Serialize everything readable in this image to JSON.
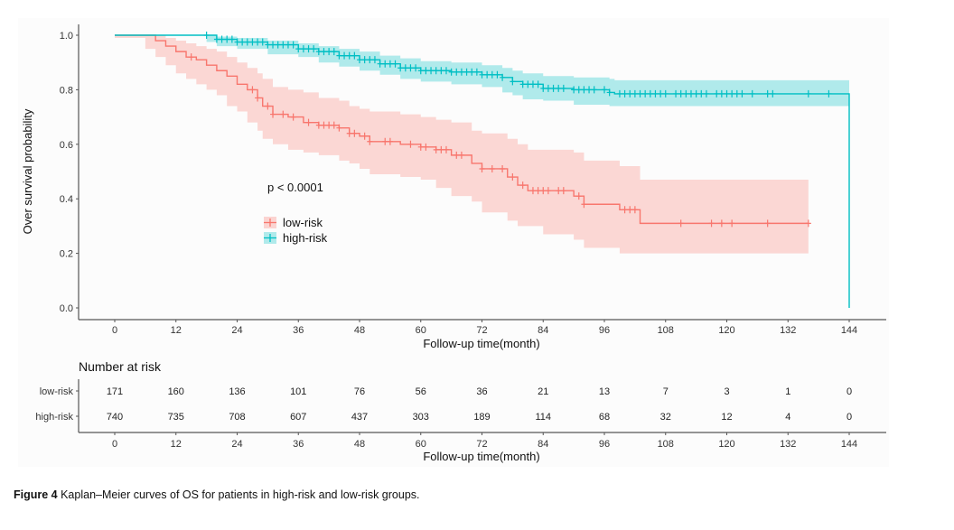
{
  "caption": {
    "label": "Figure 4",
    "text": " Kaplan–Meier curves of OS for patients in high-risk and low-risk groups."
  },
  "chart_data": {
    "type": "line",
    "subtype": "kaplan-meier",
    "title": "",
    "xlabel": "Follow-up time(month)",
    "ylabel": "Over survival probability",
    "xlim": [
      0,
      144
    ],
    "ylim": [
      0,
      1
    ],
    "x_ticks": [
      0,
      12,
      24,
      36,
      48,
      60,
      72,
      84,
      96,
      108,
      120,
      132,
      144
    ],
    "y_ticks": [
      0.0,
      0.2,
      0.4,
      0.6,
      0.8,
      1.0
    ],
    "y_tick_labels": [
      "0.0",
      "0.2",
      "0.4",
      "0.6",
      "0.8",
      "1.0"
    ],
    "grid": false,
    "annotation": "p < 0.0001",
    "legend": {
      "placement": "center-left",
      "entries": [
        "low-risk",
        "high-risk"
      ]
    },
    "series": [
      {
        "name": "low-risk",
        "color": "#F8766D",
        "band_color": "#F8766D",
        "points": [
          [
            0,
            1.0
          ],
          [
            6,
            1.0
          ],
          [
            8,
            0.98
          ],
          [
            10,
            0.96
          ],
          [
            12,
            0.94
          ],
          [
            14,
            0.92
          ],
          [
            16,
            0.91
          ],
          [
            18,
            0.89
          ],
          [
            20,
            0.87
          ],
          [
            22,
            0.85
          ],
          [
            24,
            0.82
          ],
          [
            26,
            0.8
          ],
          [
            28,
            0.77
          ],
          [
            29,
            0.74
          ],
          [
            31,
            0.71
          ],
          [
            34,
            0.7
          ],
          [
            37,
            0.68
          ],
          [
            40,
            0.67
          ],
          [
            44,
            0.66
          ],
          [
            46,
            0.64
          ],
          [
            48,
            0.63
          ],
          [
            50,
            0.61
          ],
          [
            56,
            0.6
          ],
          [
            60,
            0.59
          ],
          [
            63,
            0.58
          ],
          [
            66,
            0.56
          ],
          [
            70,
            0.53
          ],
          [
            72,
            0.51
          ],
          [
            77,
            0.48
          ],
          [
            79,
            0.45
          ],
          [
            81,
            0.43
          ],
          [
            84,
            0.43
          ],
          [
            90,
            0.41
          ],
          [
            92,
            0.38
          ],
          [
            99,
            0.36
          ],
          [
            103,
            0.31
          ],
          [
            136,
            0.31
          ]
        ],
        "lower": [
          [
            0,
            1.0
          ],
          [
            6,
            0.99
          ],
          [
            8,
            0.95
          ],
          [
            10,
            0.92
          ],
          [
            12,
            0.89
          ],
          [
            14,
            0.86
          ],
          [
            16,
            0.84
          ],
          [
            18,
            0.82
          ],
          [
            20,
            0.8
          ],
          [
            22,
            0.78
          ],
          [
            24,
            0.74
          ],
          [
            26,
            0.72
          ],
          [
            28,
            0.68
          ],
          [
            29,
            0.65
          ],
          [
            31,
            0.62
          ],
          [
            34,
            0.6
          ],
          [
            37,
            0.58
          ],
          [
            40,
            0.57
          ],
          [
            44,
            0.56
          ],
          [
            46,
            0.54
          ],
          [
            48,
            0.53
          ],
          [
            50,
            0.51
          ],
          [
            56,
            0.49
          ],
          [
            60,
            0.48
          ],
          [
            63,
            0.47
          ],
          [
            66,
            0.44
          ],
          [
            70,
            0.41
          ],
          [
            72,
            0.39
          ],
          [
            77,
            0.35
          ],
          [
            79,
            0.32
          ],
          [
            81,
            0.3
          ],
          [
            84,
            0.3
          ],
          [
            90,
            0.27
          ],
          [
            92,
            0.25
          ],
          [
            99,
            0.22
          ],
          [
            103,
            0.2
          ],
          [
            136,
            0.2
          ]
        ],
        "upper": [
          [
            0,
            1.0
          ],
          [
            6,
            1.0
          ],
          [
            8,
            1.0
          ],
          [
            10,
            0.99
          ],
          [
            12,
            0.98
          ],
          [
            14,
            0.97
          ],
          [
            16,
            0.96
          ],
          [
            18,
            0.95
          ],
          [
            20,
            0.94
          ],
          [
            22,
            0.92
          ],
          [
            24,
            0.9
          ],
          [
            26,
            0.88
          ],
          [
            28,
            0.86
          ],
          [
            29,
            0.84
          ],
          [
            31,
            0.81
          ],
          [
            34,
            0.8
          ],
          [
            37,
            0.79
          ],
          [
            40,
            0.77
          ],
          [
            44,
            0.76
          ],
          [
            46,
            0.74
          ],
          [
            48,
            0.73
          ],
          [
            50,
            0.72
          ],
          [
            56,
            0.71
          ],
          [
            60,
            0.7
          ],
          [
            63,
            0.69
          ],
          [
            66,
            0.68
          ],
          [
            70,
            0.65
          ],
          [
            72,
            0.64
          ],
          [
            77,
            0.62
          ],
          [
            79,
            0.6
          ],
          [
            81,
            0.58
          ],
          [
            84,
            0.58
          ],
          [
            90,
            0.57
          ],
          [
            92,
            0.54
          ],
          [
            99,
            0.52
          ],
          [
            103,
            0.47
          ],
          [
            136,
            0.47
          ]
        ],
        "censor_times": [
          15,
          27,
          28,
          30,
          31,
          33,
          35,
          38,
          40,
          41,
          42,
          43,
          44,
          46,
          47,
          49,
          50,
          53,
          54,
          58,
          60,
          61,
          63,
          64,
          65,
          67,
          68,
          72,
          74,
          76,
          78,
          80,
          82,
          83,
          84,
          85,
          87,
          88,
          91,
          92,
          100,
          101,
          102,
          111,
          117,
          119,
          121,
          128,
          136
        ]
      },
      {
        "name": "high-risk",
        "color": "#00BFC4",
        "band_color": "#00BFC4",
        "points": [
          [
            0,
            1.0
          ],
          [
            18,
            1.0
          ],
          [
            20,
            0.985
          ],
          [
            24,
            0.975
          ],
          [
            30,
            0.965
          ],
          [
            36,
            0.95
          ],
          [
            40,
            0.94
          ],
          [
            44,
            0.925
          ],
          [
            48,
            0.91
          ],
          [
            52,
            0.895
          ],
          [
            56,
            0.88
          ],
          [
            60,
            0.87
          ],
          [
            66,
            0.865
          ],
          [
            72,
            0.855
          ],
          [
            76,
            0.845
          ],
          [
            78,
            0.83
          ],
          [
            80,
            0.82
          ],
          [
            84,
            0.805
          ],
          [
            90,
            0.8
          ],
          [
            97,
            0.79
          ],
          [
            98,
            0.785
          ],
          [
            144,
            0.785
          ],
          [
            144,
            0.0
          ]
        ],
        "lower": [
          [
            0,
            1.0
          ],
          [
            18,
            1.0
          ],
          [
            20,
            0.975
          ],
          [
            24,
            0.96
          ],
          [
            30,
            0.95
          ],
          [
            36,
            0.93
          ],
          [
            40,
            0.92
          ],
          [
            44,
            0.9
          ],
          [
            48,
            0.885
          ],
          [
            52,
            0.87
          ],
          [
            56,
            0.855
          ],
          [
            60,
            0.84
          ],
          [
            66,
            0.83
          ],
          [
            72,
            0.82
          ],
          [
            76,
            0.81
          ],
          [
            78,
            0.79
          ],
          [
            80,
            0.78
          ],
          [
            84,
            0.765
          ],
          [
            90,
            0.76
          ],
          [
            97,
            0.745
          ],
          [
            98,
            0.74
          ],
          [
            144,
            0.74
          ]
        ],
        "upper": [
          [
            0,
            1.0
          ],
          [
            18,
            1.0
          ],
          [
            20,
            0.995
          ],
          [
            24,
            0.99
          ],
          [
            30,
            0.98
          ],
          [
            36,
            0.97
          ],
          [
            40,
            0.96
          ],
          [
            44,
            0.95
          ],
          [
            48,
            0.94
          ],
          [
            52,
            0.925
          ],
          [
            56,
            0.915
          ],
          [
            60,
            0.905
          ],
          [
            66,
            0.9
          ],
          [
            72,
            0.89
          ],
          [
            76,
            0.88
          ],
          [
            78,
            0.87
          ],
          [
            80,
            0.86
          ],
          [
            84,
            0.85
          ],
          [
            90,
            0.845
          ],
          [
            97,
            0.84
          ],
          [
            98,
            0.835
          ],
          [
            144,
            0.835
          ]
        ],
        "censor_times": [
          18,
          20,
          21,
          22,
          23,
          24,
          25,
          26,
          27,
          28,
          29,
          30,
          31,
          32,
          33,
          34,
          35,
          36,
          37,
          38,
          39,
          40,
          41,
          42,
          43,
          44,
          45,
          46,
          47,
          48,
          49,
          50,
          51,
          52,
          53,
          54,
          55,
          56,
          57,
          58,
          59,
          60,
          61,
          62,
          63,
          64,
          65,
          66,
          67,
          68,
          69,
          70,
          71,
          72,
          73,
          74,
          75,
          76,
          78,
          80,
          81,
          82,
          83,
          84,
          85,
          86,
          87,
          88,
          90,
          91,
          92,
          93,
          94,
          96,
          97,
          99,
          100,
          101,
          102,
          103,
          104,
          105,
          106,
          107,
          108,
          110,
          111,
          112,
          113,
          114,
          115,
          116,
          118,
          119,
          120,
          121,
          122,
          123,
          125,
          128,
          129,
          136,
          140
        ]
      }
    ],
    "risk_table": {
      "title": "Number at risk",
      "xlabel": "Follow-up time(month)",
      "times": [
        0,
        12,
        24,
        36,
        48,
        60,
        72,
        84,
        96,
        108,
        120,
        132,
        144
      ],
      "rows": [
        {
          "name": "low-risk",
          "values": [
            171,
            160,
            136,
            101,
            76,
            56,
            36,
            21,
            13,
            7,
            3,
            1,
            0
          ]
        },
        {
          "name": "high-risk",
          "values": [
            740,
            735,
            708,
            607,
            437,
            303,
            189,
            114,
            68,
            32,
            12,
            4,
            0
          ]
        }
      ]
    }
  }
}
